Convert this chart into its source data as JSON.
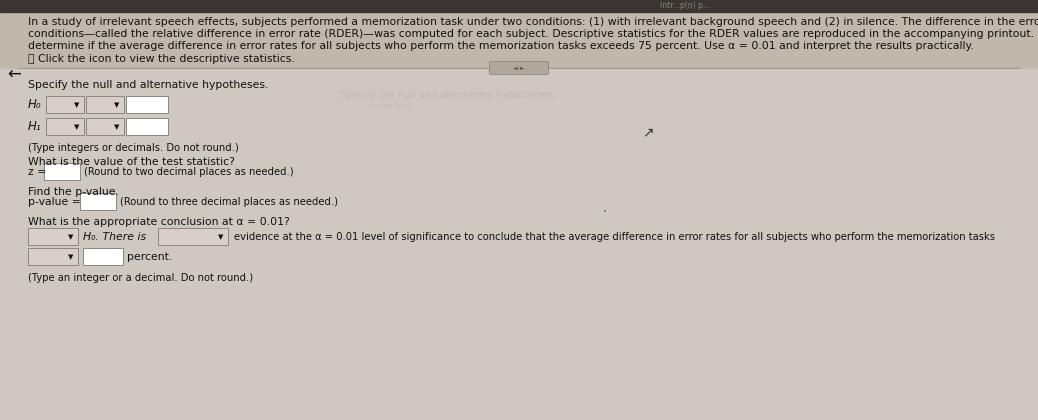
{
  "bg_top": "#c0b8ad",
  "bg_bottom": "#cec8c0",
  "text_color": "#111111",
  "box_border": "#888880",
  "box_dropdown_fill": "#d8d0c8",
  "box_answer_fill": "#ffffff",
  "header_line1": "In a study of irrelevant speech effects, subjects performed a memorization task under two conditions: (1) with irrelevant background speech and (2) in silence. The difference in the error rates for the two",
  "header_line2": "conditions—called the relative difference in error rate (RDER)—was computed for each subject. Descriptive statistics for the RDER values are reproduced in the accompanying printout. Conduct a test to",
  "header_line3": "determine if the average difference in error rates for all subjects who perform the memorization tasks exceeds 75 percent. Use α = 0.01 and interpret the results practically.",
  "icon_line": "ⓘ Click the icon to view the descriptive statistics.",
  "s1": "Specify the null and alternative hypotheses.",
  "h0_label": "H₀",
  "ha_label": "H₁",
  "type_note1": "(Type integers or decimals. Do not round.)",
  "s2": "What is the value of the test statistic?",
  "z_label": "z =",
  "z_note": "(Round to two decimal places as needed.)",
  "s3": "Find the p-value.",
  "pval_label": "p-value =",
  "pval_note": "(Round to three decimal places as needed.)",
  "s4": "What is the appropriate conclusion at α = 0.01?",
  "conc_text": "evidence at the α = 0.01 level of significance to conclude that the average difference in error rates for all subjects who perform the memorization tasks",
  "conc2_label": "percent.",
  "type_note2": "(Type an integer or a decimal. Do not round.)",
  "fs_header": 7.8,
  "fs_body": 7.8,
  "fs_small": 7.2,
  "fs_label": 8.5
}
